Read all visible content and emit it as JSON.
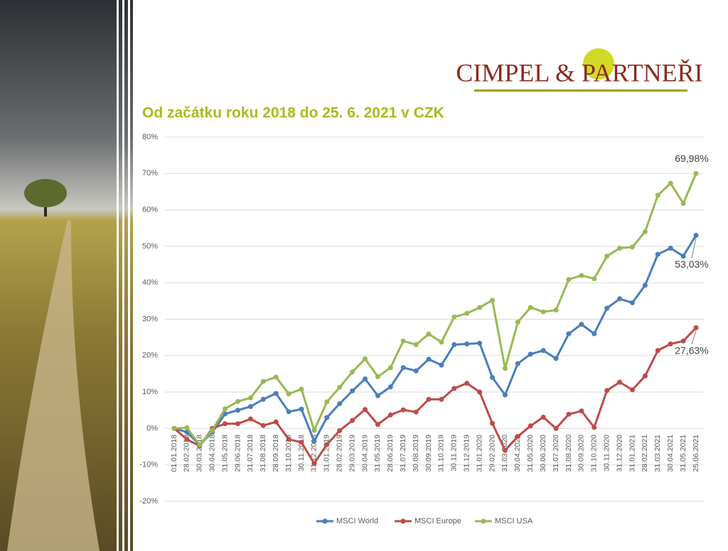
{
  "logo": "CIMPEL & PARTNEŘI",
  "chart_data": {
    "type": "line",
    "title": "Od začátku roku 2018 do 25. 6. 2021 v CZK",
    "categories": [
      "01.01.2018",
      "28.02.2018",
      "30.03.2018",
      "30.04.2018",
      "31.05.2018",
      "29.06.2018",
      "31.07.2018",
      "31.08.2018",
      "28.09.2018",
      "31.10.2018",
      "30.11.2018",
      "31.12.2018",
      "31.01.2019",
      "28.02.2019",
      "29.03.2019",
      "30.04.2019",
      "31.05.2019",
      "28.06.2019",
      "31.07.2019",
      "30.08.2019",
      "30.09.2019",
      "31.10.2019",
      "30.11.2019",
      "31.12.2019",
      "31.01.2020",
      "29.02.2020",
      "31.03.2020",
      "30.04.2020",
      "31.05.2020",
      "30.06.2020",
      "31.07.2020",
      "31.08.2020",
      "30.09.2020",
      "31.10.2020",
      "30.11.2020",
      "31.12.2020",
      "31.01.2021",
      "28.02.2021",
      "31.03.2021",
      "30.04.2021",
      "31.05.2021",
      "25.06.2021"
    ],
    "series": [
      {
        "name": "MSCI World",
        "color": "#4a7ebb",
        "values": [
          0,
          -1,
          -4.5,
          -1,
          4,
          5,
          6,
          8,
          9.6,
          4.6,
          5.3,
          -3.5,
          3,
          6.8,
          10.3,
          13.6,
          9,
          11.4,
          16.7,
          15.8,
          19,
          17.4,
          23,
          23.2,
          23.4,
          14,
          9.2,
          17.8,
          20.4,
          21.4,
          19.2,
          26,
          28.6,
          26,
          33,
          35.6,
          34.5,
          39.3,
          47.8,
          49.5,
          47.3,
          53.03
        ],
        "value_labels": [
          null,
          null,
          null,
          null,
          null,
          null,
          null,
          null,
          null,
          null,
          null,
          null,
          null,
          null,
          null,
          null,
          null,
          null,
          null,
          null,
          null,
          null,
          null,
          null,
          null,
          null,
          null,
          null,
          null,
          null,
          null,
          null,
          null,
          null,
          null,
          null,
          null,
          null,
          null,
          null,
          null,
          "53,03%"
        ]
      },
      {
        "name": "MSCI Europe",
        "color": "#be4b48",
        "values": [
          0,
          -3,
          -4.8,
          0,
          1.3,
          1.3,
          2.6,
          0.8,
          1.8,
          -3,
          -3.8,
          -9.6,
          -4.4,
          -0.6,
          2.2,
          5.2,
          1.1,
          3.7,
          5.1,
          4.5,
          8,
          8,
          11,
          12.4,
          10,
          1.4,
          -6,
          -2.2,
          0.7,
          3.1,
          0,
          3.9,
          4.8,
          0.3,
          10.4,
          12.7,
          10.6,
          14.4,
          21.4,
          23.2,
          24,
          27.63
        ],
        "value_labels": [
          null,
          null,
          null,
          null,
          null,
          null,
          null,
          null,
          null,
          null,
          null,
          null,
          null,
          null,
          null,
          null,
          null,
          null,
          null,
          null,
          null,
          null,
          null,
          null,
          null,
          null,
          null,
          null,
          null,
          null,
          null,
          null,
          null,
          null,
          null,
          null,
          null,
          null,
          null,
          null,
          null,
          "27,63%"
        ]
      },
      {
        "name": "MSCI USA",
        "color": "#98b954",
        "values": [
          0,
          0.2,
          -4.5,
          -0.5,
          5.4,
          7.4,
          8.4,
          12.9,
          14.1,
          9.5,
          10.8,
          -0.5,
          7.3,
          11.3,
          15.5,
          19.1,
          14.2,
          16.7,
          24,
          23,
          25.9,
          23.7,
          30.6,
          31.6,
          33.2,
          35.2,
          16.5,
          29.2,
          33.2,
          32,
          32.5,
          40.9,
          42,
          41.1,
          47.3,
          49.5,
          49.8,
          54,
          64,
          67.3,
          61.8,
          69.98
        ],
        "value_labels": [
          null,
          null,
          null,
          null,
          null,
          null,
          null,
          null,
          null,
          null,
          null,
          null,
          null,
          null,
          null,
          null,
          null,
          null,
          null,
          null,
          null,
          null,
          null,
          null,
          null,
          null,
          null,
          null,
          null,
          null,
          null,
          null,
          null,
          null,
          null,
          null,
          null,
          null,
          null,
          null,
          null,
          "69,98%"
        ]
      }
    ],
    "ylim": [
      -20,
      80
    ],
    "yticks": [
      {
        "value": -20,
        "label": "-20%"
      },
      {
        "value": -10,
        "label": "-10%"
      },
      {
        "value": 0,
        "label": "0%"
      },
      {
        "value": 10,
        "label": "10%"
      },
      {
        "value": 20,
        "label": "20%"
      },
      {
        "value": 30,
        "label": "30%"
      },
      {
        "value": 40,
        "label": "40%"
      },
      {
        "value": 50,
        "label": "50%"
      },
      {
        "value": 60,
        "label": "60%"
      },
      {
        "value": 70,
        "label": "70%"
      },
      {
        "value": 80,
        "label": "80%"
      }
    ],
    "grid": true,
    "legend": "bottom"
  }
}
